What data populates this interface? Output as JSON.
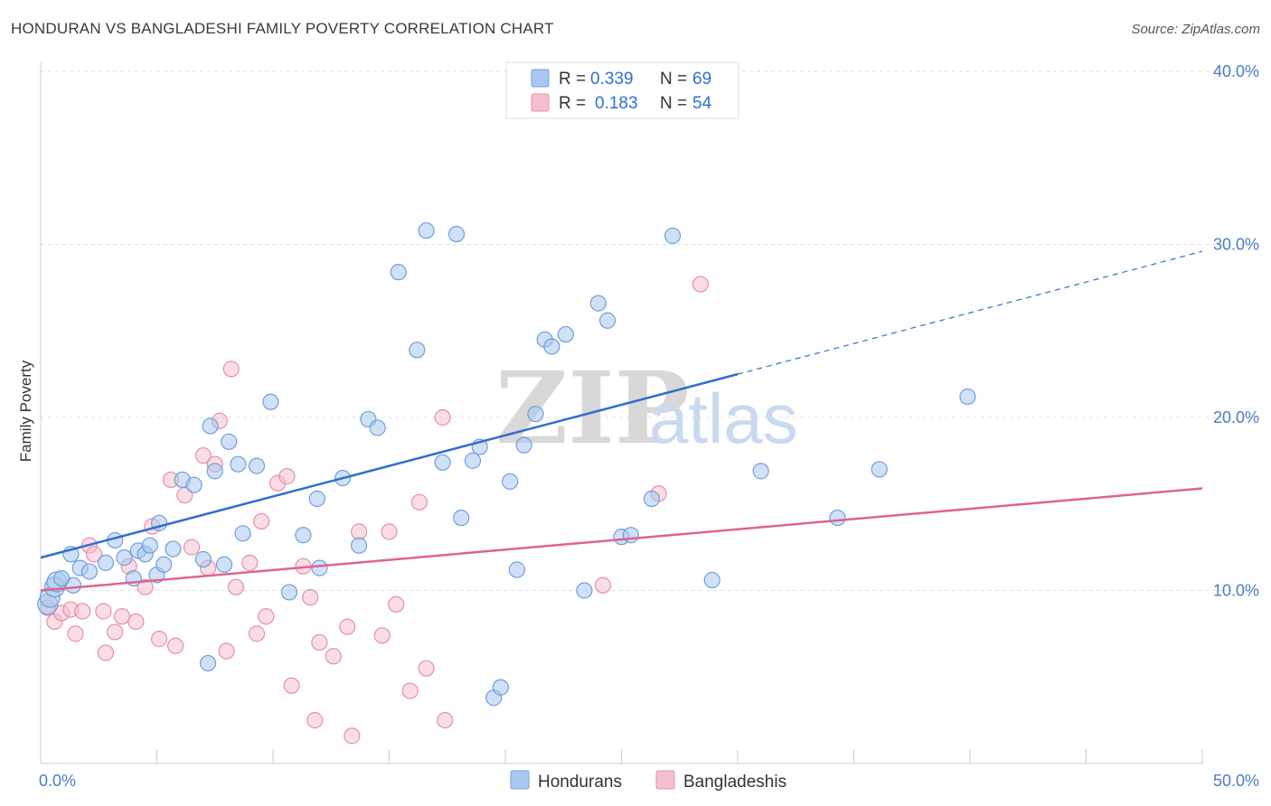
{
  "title": "HONDURAN VS BANGLADESHI FAMILY POVERTY CORRELATION CHART",
  "source": "Source: ZipAtlas.com",
  "watermark": {
    "zip": "ZIP",
    "atlas": "atlas"
  },
  "colors": {
    "blue_fill": "#a9c8f0",
    "blue_stroke": "#6f9fdc",
    "blue_line": "#2e6fcf",
    "pink_fill": "#f6bfd0",
    "pink_stroke": "#e58fab",
    "pink_line": "#e0628c",
    "grid": "#dddddd",
    "axis_text": "#4a7cc9"
  },
  "legend": {
    "rows": [
      {
        "r_label": "R =",
        "r_value": "0.339",
        "n_label": "N =",
        "n_value": "69"
      },
      {
        "r_label": "R =",
        "r_value": "0.183",
        "n_label": "N =",
        "n_value": "54"
      }
    ]
  },
  "bottom_legend": {
    "series1": "Hondurans",
    "series2": "Bangladeshis"
  },
  "chart_data": {
    "type": "scatter",
    "xlabel": "",
    "ylabel": "Family Poverty",
    "xlim": [
      0,
      50
    ],
    "ylim": [
      0,
      40
    ],
    "x_tick_labels": [
      "0.0%",
      "50.0%"
    ],
    "y_ticks": [
      10,
      20,
      30,
      40
    ],
    "y_tick_labels": [
      "10.0%",
      "20.0%",
      "30.0%",
      "40.0%"
    ],
    "grid": "horizontal dashed",
    "legend_position": "top-center",
    "series": [
      {
        "name": "Hondurans",
        "color": "#a9c8f0",
        "trend": {
          "x0": 0,
          "y0": 11.9,
          "x1": 30,
          "y1": 22.5,
          "dashed_to_x": 50,
          "dashed_to_y": 29.6
        },
        "points": [
          [
            0.3,
            9.2
          ],
          [
            0.4,
            9.6
          ],
          [
            0.6,
            10.2
          ],
          [
            0.7,
            10.5
          ],
          [
            1.4,
            10.3
          ],
          [
            0.9,
            10.7
          ],
          [
            1.7,
            11.3
          ],
          [
            1.3,
            12.1
          ],
          [
            2.1,
            11.1
          ],
          [
            2.8,
            11.6
          ],
          [
            3.2,
            12.9
          ],
          [
            3.6,
            11.9
          ],
          [
            4.0,
            10.7
          ],
          [
            4.2,
            12.3
          ],
          [
            4.5,
            12.1
          ],
          [
            4.7,
            12.6
          ],
          [
            5.0,
            10.9
          ],
          [
            5.3,
            11.5
          ],
          [
            5.1,
            13.9
          ],
          [
            5.7,
            12.4
          ],
          [
            6.1,
            16.4
          ],
          [
            6.6,
            16.1
          ],
          [
            7.0,
            11.8
          ],
          [
            7.3,
            19.5
          ],
          [
            7.5,
            16.9
          ],
          [
            7.9,
            11.5
          ],
          [
            8.1,
            18.6
          ],
          [
            8.5,
            17.3
          ],
          [
            8.7,
            13.3
          ],
          [
            9.3,
            17.2
          ],
          [
            9.9,
            20.9
          ],
          [
            10.7,
            9.9
          ],
          [
            11.3,
            13.2
          ],
          [
            11.9,
            15.3
          ],
          [
            12.0,
            11.3
          ],
          [
            13.0,
            16.5
          ],
          [
            13.7,
            12.6
          ],
          [
            14.1,
            19.9
          ],
          [
            14.5,
            19.4
          ],
          [
            15.4,
            28.4
          ],
          [
            16.2,
            23.9
          ],
          [
            16.6,
            30.8
          ],
          [
            17.3,
            17.4
          ],
          [
            17.9,
            30.6
          ],
          [
            18.1,
            14.2
          ],
          [
            18.6,
            17.5
          ],
          [
            18.9,
            18.3
          ],
          [
            19.5,
            3.8
          ],
          [
            19.8,
            4.4
          ],
          [
            20.2,
            16.3
          ],
          [
            20.5,
            11.2
          ],
          [
            20.8,
            18.4
          ],
          [
            21.3,
            20.2
          ],
          [
            21.7,
            24.5
          ],
          [
            22.0,
            24.1
          ],
          [
            22.6,
            24.8
          ],
          [
            23.4,
            10.0
          ],
          [
            24.0,
            26.6
          ],
          [
            24.4,
            25.6
          ],
          [
            25.0,
            13.1
          ],
          [
            25.4,
            13.2
          ],
          [
            26.3,
            15.3
          ],
          [
            27.2,
            30.5
          ],
          [
            28.9,
            10.6
          ],
          [
            31.0,
            16.9
          ],
          [
            34.3,
            14.2
          ],
          [
            36.1,
            17.0
          ],
          [
            39.9,
            21.2
          ],
          [
            7.2,
            5.8
          ]
        ]
      },
      {
        "name": "Bangladeshis",
        "color": "#f6bfd0",
        "trend": {
          "x0": 0,
          "y0": 10.0,
          "x1": 50,
          "y1": 15.9
        },
        "points": [
          [
            0.3,
            9.0
          ],
          [
            0.6,
            8.2
          ],
          [
            0.9,
            8.7
          ],
          [
            1.3,
            8.9
          ],
          [
            1.5,
            7.5
          ],
          [
            1.8,
            8.8
          ],
          [
            2.1,
            12.6
          ],
          [
            2.3,
            12.1
          ],
          [
            2.7,
            8.8
          ],
          [
            2.8,
            6.4
          ],
          [
            3.2,
            7.6
          ],
          [
            3.5,
            8.5
          ],
          [
            3.8,
            11.4
          ],
          [
            4.1,
            8.2
          ],
          [
            4.5,
            10.2
          ],
          [
            4.8,
            13.7
          ],
          [
            5.1,
            7.2
          ],
          [
            5.6,
            16.4
          ],
          [
            5.8,
            6.8
          ],
          [
            6.2,
            15.5
          ],
          [
            6.5,
            12.5
          ],
          [
            7.0,
            17.8
          ],
          [
            7.2,
            11.3
          ],
          [
            7.5,
            17.3
          ],
          [
            7.7,
            19.8
          ],
          [
            8.0,
            6.5
          ],
          [
            8.2,
            22.8
          ],
          [
            8.4,
            10.2
          ],
          [
            9.0,
            11.6
          ],
          [
            9.3,
            7.5
          ],
          [
            9.5,
            14.0
          ],
          [
            9.7,
            8.5
          ],
          [
            10.2,
            16.2
          ],
          [
            10.6,
            16.6
          ],
          [
            10.8,
            4.5
          ],
          [
            11.3,
            11.4
          ],
          [
            11.6,
            9.6
          ],
          [
            11.8,
            2.5
          ],
          [
            12.0,
            7.0
          ],
          [
            12.6,
            6.2
          ],
          [
            13.2,
            7.9
          ],
          [
            13.4,
            1.6
          ],
          [
            13.7,
            13.4
          ],
          [
            14.7,
            7.4
          ],
          [
            15.0,
            13.4
          ],
          [
            15.3,
            9.2
          ],
          [
            15.9,
            4.2
          ],
          [
            16.3,
            15.1
          ],
          [
            16.6,
            5.5
          ],
          [
            17.3,
            20.0
          ],
          [
            17.4,
            2.5
          ],
          [
            24.2,
            10.3
          ],
          [
            26.6,
            15.6
          ],
          [
            28.4,
            27.7
          ]
        ]
      }
    ]
  }
}
